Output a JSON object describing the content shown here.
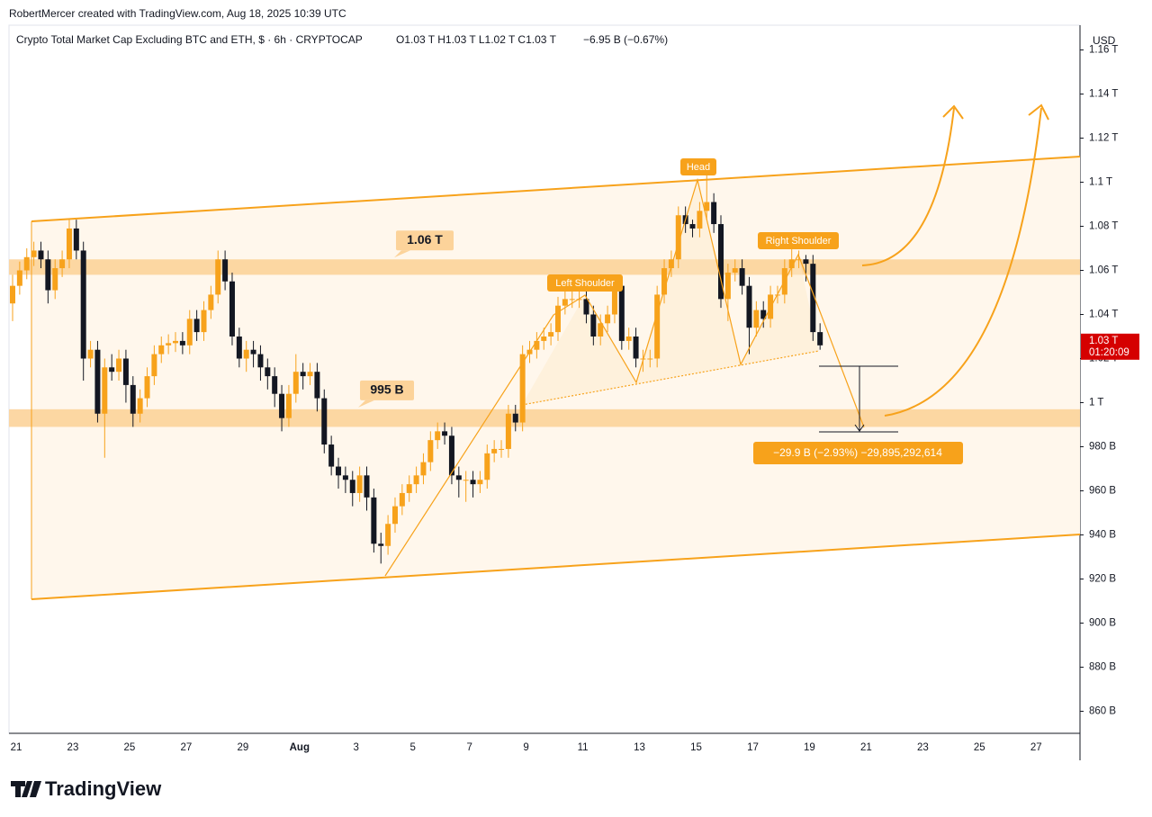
{
  "header": {
    "credit": "RobertMercer created with TradingView.com, Aug 18, 2025 10:39 UTC",
    "brand": "TradingView"
  },
  "chart_data": {
    "type": "candlestick",
    "title": "Crypto Total Market Cap Excluding BTC and ETH, $ · 6h · CRYPTOCAP",
    "ohlc_label": "O1.03 T  H1.03 T  L1.02 T  C1.03 T",
    "change_label": "−6.95 B (−0.67%)",
    "currency": "USD",
    "up_color": "#f7a21b",
    "down_color": "#131722",
    "xtick_labels": [
      "21",
      "23",
      "25",
      "27",
      "29",
      "Aug",
      "3",
      "5",
      "7",
      "9",
      "11",
      "13",
      "15",
      "17",
      "19",
      "21",
      "23",
      "25",
      "27"
    ],
    "ylim": [
      850,
      1170
    ],
    "yticks": [
      {
        "value": 860,
        "label": "860 B"
      },
      {
        "value": 880,
        "label": "880 B"
      },
      {
        "value": 900,
        "label": "900 B"
      },
      {
        "value": 920,
        "label": "920 B"
      },
      {
        "value": 940,
        "label": "940 B"
      },
      {
        "value": 960,
        "label": "960 B"
      },
      {
        "value": 980,
        "label": "980 B"
      },
      {
        "value": 1000,
        "label": "1 T"
      },
      {
        "value": 1020,
        "label": "1.02 T"
      },
      {
        "value": 1040,
        "label": "1.04 T"
      },
      {
        "value": 1060,
        "label": "1.06 T"
      },
      {
        "value": 1080,
        "label": "1.08 T"
      },
      {
        "value": 1100,
        "label": "1.1 T"
      },
      {
        "value": 1120,
        "label": "1.12 T"
      },
      {
        "value": 1140,
        "label": "1.14 T"
      },
      {
        "value": 1160,
        "label": "1.16 T"
      }
    ],
    "open": [
      1045,
      1053,
      1060,
      1066,
      1069,
      1065,
      1051,
      1061,
      1065,
      1079,
      1069,
      1020,
      1024,
      995,
      1016,
      1014,
      1020,
      1008,
      995,
      1002,
      1012,
      1022,
      1026,
      1027,
      1028,
      1026,
      1038,
      1032,
      1042,
      1049,
      1065,
      1055,
      1030,
      1020,
      1024,
      1022,
      1016,
      1012,
      1004,
      993,
      1004,
      1014,
      1012,
      1014,
      1002,
      981,
      971,
      967,
      965,
      959,
      967,
      957,
      936,
      935,
      945,
      953,
      959,
      963,
      967,
      973,
      983,
      987,
      985,
      967,
      965,
      965,
      963,
      965,
      977,
      979,
      979,
      995,
      991,
      1022,
      1024,
      1028,
      1030,
      1032,
      1044,
      1047,
      1047,
      1047,
      1040,
      1030,
      1036,
      1040,
      1053,
      1028,
      1030,
      1020,
      1020,
      1020,
      1049,
      1061,
      1065,
      1085,
      1081,
      1079,
      1087,
      1091,
      1081,
      1047,
      1059,
      1061,
      1053,
      1034,
      1042,
      1038,
      1049,
      1049,
      1061,
      1065,
      1065,
      1063,
      1032
    ],
    "high": [
      1058,
      1064,
      1070,
      1073,
      1073,
      1069,
      1065,
      1069,
      1083,
      1083,
      1073,
      1028,
      1028,
      1020,
      1022,
      1024,
      1024,
      1012,
      1006,
      1016,
      1026,
      1030,
      1031,
      1032,
      1032,
      1042,
      1042,
      1046,
      1053,
      1069,
      1069,
      1059,
      1034,
      1028,
      1028,
      1026,
      1020,
      1016,
      1008,
      1008,
      1022,
      1018,
      1018,
      1018,
      1006,
      985,
      975,
      971,
      969,
      971,
      971,
      961,
      941,
      949,
      957,
      963,
      967,
      971,
      977,
      987,
      991,
      991,
      989,
      971,
      969,
      969,
      969,
      981,
      983,
      983,
      999,
      999,
      1026,
      1028,
      1032,
      1034,
      1036,
      1048,
      1051,
      1051,
      1051,
      1051,
      1044,
      1040,
      1044,
      1057,
      1057,
      1034,
      1034,
      1024,
      1024,
      1053,
      1065,
      1069,
      1089,
      1089,
      1083,
      1091,
      1105,
      1095,
      1085,
      1063,
      1065,
      1065,
      1057,
      1046,
      1046,
      1053,
      1053,
      1065,
      1073,
      1069,
      1067,
      1067,
      1036
    ],
    "low": [
      1037,
      1049,
      1056,
      1062,
      1061,
      1045,
      1047,
      1057,
      1061,
      1065,
      1010,
      1016,
      991,
      975,
      1010,
      1010,
      1000,
      989,
      991,
      998,
      1008,
      1018,
      1022,
      1023,
      1022,
      1022,
      1028,
      1028,
      1038,
      1045,
      1051,
      1026,
      1016,
      1014,
      1016,
      1010,
      1006,
      998,
      987,
      989,
      1000,
      1006,
      1008,
      996,
      977,
      967,
      961,
      959,
      953,
      955,
      951,
      932,
      927,
      931,
      941,
      949,
      955,
      959,
      963,
      969,
      979,
      981,
      963,
      957,
      955,
      957,
      959,
      961,
      973,
      975,
      975,
      987,
      987,
      1018,
      1020,
      1024,
      1026,
      1028,
      1040,
      1043,
      1043,
      1036,
      1026,
      1026,
      1032,
      1036,
      1024,
      1024,
      1016,
      1014,
      1016,
      1016,
      1045,
      1057,
      1061,
      1077,
      1075,
      1075,
      1083,
      1077,
      1043,
      1037,
      1055,
      1049,
      1022,
      1030,
      1034,
      1034,
      1045,
      1045,
      1057,
      1061,
      1055,
      1028,
      1024
    ],
    "close": [
      1053,
      1060,
      1066,
      1069,
      1065,
      1051,
      1061,
      1065,
      1079,
      1069,
      1020,
      1024,
      995,
      1016,
      1014,
      1020,
      1008,
      995,
      1002,
      1012,
      1022,
      1026,
      1027,
      1028,
      1026,
      1038,
      1032,
      1042,
      1049,
      1065,
      1055,
      1030,
      1020,
      1024,
      1022,
      1016,
      1012,
      1004,
      993,
      1004,
      1014,
      1012,
      1014,
      1002,
      981,
      971,
      967,
      965,
      959,
      967,
      957,
      936,
      935,
      945,
      953,
      959,
      963,
      967,
      973,
      983,
      987,
      985,
      967,
      965,
      965,
      963,
      965,
      977,
      979,
      979,
      995,
      991,
      1022,
      1024,
      1028,
      1030,
      1032,
      1044,
      1047,
      1047,
      1047,
      1040,
      1030,
      1036,
      1040,
      1053,
      1028,
      1030,
      1020,
      1020,
      1020,
      1049,
      1061,
      1065,
      1085,
      1081,
      1079,
      1087,
      1091,
      1081,
      1047,
      1059,
      1061,
      1053,
      1034,
      1042,
      1038,
      1049,
      1049,
      1061,
      1065,
      1065,
      1063,
      1032,
      1026
    ],
    "zones": [
      {
        "label": "1.06 T",
        "from": 1058,
        "to": 1065
      },
      {
        "label": "995 B",
        "from": 989,
        "to": 997
      }
    ],
    "annotations": {
      "head": "Head",
      "left_shoulder": "Left Shoulder",
      "right_shoulder": "Right Shoulder",
      "measure": "−29.9 B (−2.93%) −29,895,292,614"
    },
    "last_price": {
      "value": 1026,
      "label": "1.03 T",
      "countdown": "01:20:09"
    }
  }
}
